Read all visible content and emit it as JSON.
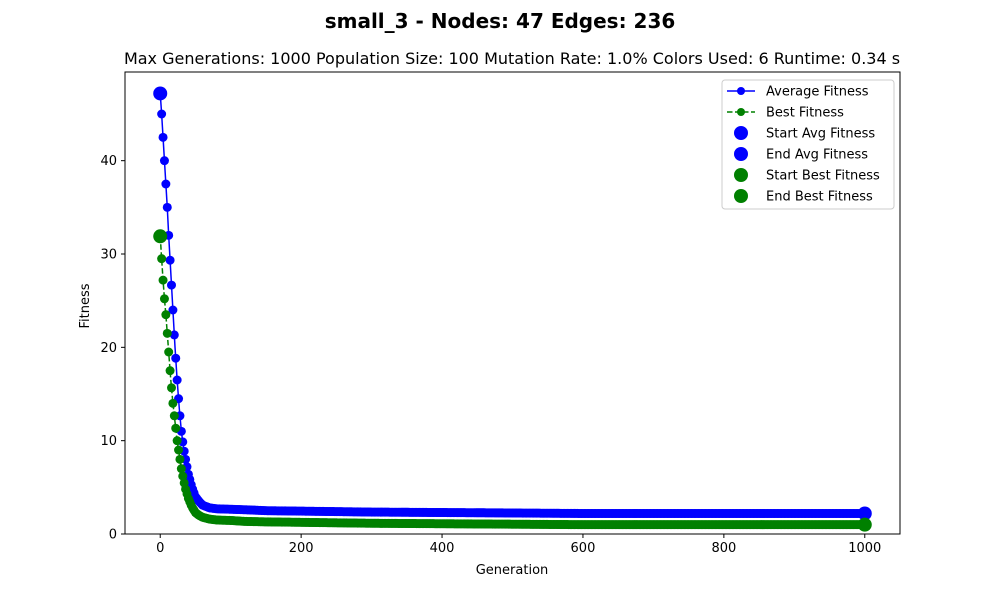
{
  "figure": {
    "suptitle": "small_3 - Nodes: 47 Edges: 236",
    "subtitle": "Max Generations: 1000  Population Size: 100  Mutation Rate: 1.0%  Colors Used: 6  Runtime: 0.34 s"
  },
  "chart_data": {
    "type": "line",
    "xlabel": "Generation",
    "ylabel": "Fitness",
    "xlim": [
      -50,
      1050
    ],
    "ylim": [
      0,
      49.5
    ],
    "xticks": [
      0,
      200,
      400,
      600,
      800,
      1000
    ],
    "yticks": [
      0,
      10,
      20,
      30,
      40
    ],
    "grid": false,
    "legend_position": "top-right",
    "colors": {
      "avg": "#0000ff",
      "best": "#008000"
    },
    "series": [
      {
        "name": "Average Fitness",
        "line_style": "solid",
        "marker": "circle",
        "color": "#0000ff",
        "x": [
          0,
          2,
          4,
          6,
          8,
          10,
          12,
          15,
          18,
          21,
          24,
          27,
          30,
          33,
          36,
          40,
          45,
          50,
          55,
          60,
          70,
          80,
          100,
          120,
          150,
          200,
          250,
          300,
          400,
          500,
          600,
          700,
          800,
          900,
          1000
        ],
        "y": [
          47.2,
          45.0,
          42.5,
          40.0,
          37.5,
          35.0,
          32.0,
          28.0,
          24.0,
          20.0,
          16.5,
          13.5,
          11.0,
          9.3,
          8.0,
          6.4,
          5.0,
          4.0,
          3.5,
          3.1,
          2.8,
          2.7,
          2.65,
          2.6,
          2.5,
          2.45,
          2.4,
          2.35,
          2.3,
          2.25,
          2.2,
          2.2,
          2.2,
          2.2,
          2.2
        ]
      },
      {
        "name": "Best Fitness",
        "line_style": "dashed",
        "marker": "circle",
        "color": "#008000",
        "x": [
          0,
          2,
          4,
          6,
          8,
          10,
          12,
          15,
          18,
          21,
          24,
          27,
          30,
          33,
          36,
          40,
          45,
          50,
          55,
          60,
          70,
          80,
          100,
          120,
          150,
          200,
          250,
          300,
          400,
          500,
          600,
          700,
          800,
          900,
          1000
        ],
        "y": [
          31.9,
          29.5,
          27.2,
          25.2,
          23.5,
          21.5,
          19.5,
          16.5,
          14.0,
          12.0,
          10.0,
          8.5,
          7.0,
          5.8,
          4.8,
          3.8,
          2.9,
          2.3,
          2.0,
          1.8,
          1.6,
          1.5,
          1.45,
          1.35,
          1.3,
          1.25,
          1.2,
          1.15,
          1.1,
          1.05,
          1.0,
          1.0,
          1.0,
          1.0,
          1.0
        ]
      }
    ],
    "highlights": [
      {
        "name": "Start Avg Fitness",
        "x": 0,
        "y": 47.2,
        "color": "#0000ff"
      },
      {
        "name": "End Avg Fitness",
        "x": 1000,
        "y": 2.2,
        "color": "#0000ff"
      },
      {
        "name": "Start Best Fitness",
        "x": 0,
        "y": 31.9,
        "color": "#008000"
      },
      {
        "name": "End Best Fitness",
        "x": 1000,
        "y": 1.0,
        "color": "#008000"
      }
    ]
  }
}
